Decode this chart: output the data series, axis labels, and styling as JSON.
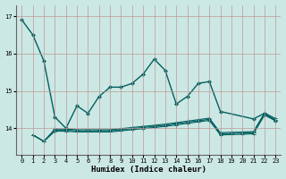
{
  "xlabel": "Humidex (Indice chaleur)",
  "background_color": "#cce8e4",
  "line_color": "#006060",
  "xlim": [
    -0.5,
    23.5
  ],
  "ylim": [
    13.3,
    17.3
  ],
  "yticks": [
    14,
    15,
    16,
    17
  ],
  "xticks": [
    0,
    1,
    2,
    3,
    4,
    5,
    6,
    7,
    8,
    9,
    10,
    11,
    12,
    13,
    14,
    15,
    16,
    17,
    18,
    19,
    20,
    21,
    22,
    23
  ],
  "main_line": {
    "x": [
      0,
      1,
      2,
      3,
      4,
      5,
      6,
      7,
      8,
      9,
      10,
      11,
      12,
      13,
      14,
      15,
      16,
      17,
      18,
      21,
      22,
      23
    ],
    "y": [
      16.9,
      16.5,
      15.8,
      14.3,
      14.0,
      14.6,
      14.4,
      14.85,
      15.1,
      15.1,
      15.2,
      15.45,
      15.85,
      15.55,
      14.65,
      14.85,
      15.2,
      15.25,
      14.45,
      14.25,
      14.4,
      14.2
    ]
  },
  "lower_line1": {
    "x": [
      1,
      2,
      3,
      4,
      5,
      6,
      7,
      8,
      9,
      10,
      11,
      12,
      13,
      14,
      15,
      16,
      17,
      18,
      19,
      20,
      21,
      22,
      23
    ],
    "y": [
      13.82,
      13.65,
      13.92,
      13.92,
      13.9,
      13.9,
      13.9,
      13.9,
      13.93,
      13.96,
      13.99,
      14.02,
      14.05,
      14.09,
      14.13,
      14.17,
      14.21,
      13.82,
      13.83,
      13.84,
      13.85,
      14.35,
      14.2
    ]
  },
  "lower_line2": {
    "x": [
      1,
      2,
      3,
      4,
      5,
      6,
      7,
      8,
      9,
      10,
      11,
      12,
      13,
      14,
      15,
      16,
      17,
      18,
      19,
      20,
      21,
      22,
      23
    ],
    "y": [
      13.82,
      13.65,
      13.95,
      13.95,
      13.93,
      13.93,
      13.93,
      13.93,
      13.96,
      13.99,
      14.02,
      14.05,
      14.08,
      14.12,
      14.16,
      14.2,
      14.24,
      13.85,
      13.86,
      13.87,
      13.88,
      14.38,
      14.23
    ]
  },
  "lower_line3": {
    "x": [
      1,
      2,
      3,
      4,
      5,
      6,
      7,
      8,
      9,
      10,
      11,
      12,
      13,
      14,
      15,
      16,
      17,
      18,
      19,
      20,
      21,
      22,
      23
    ],
    "y": [
      13.82,
      13.65,
      13.98,
      13.98,
      13.96,
      13.96,
      13.96,
      13.96,
      13.99,
      14.02,
      14.05,
      14.08,
      14.11,
      14.15,
      14.19,
      14.23,
      14.27,
      13.88,
      13.89,
      13.9,
      13.91,
      14.41,
      14.26
    ]
  }
}
